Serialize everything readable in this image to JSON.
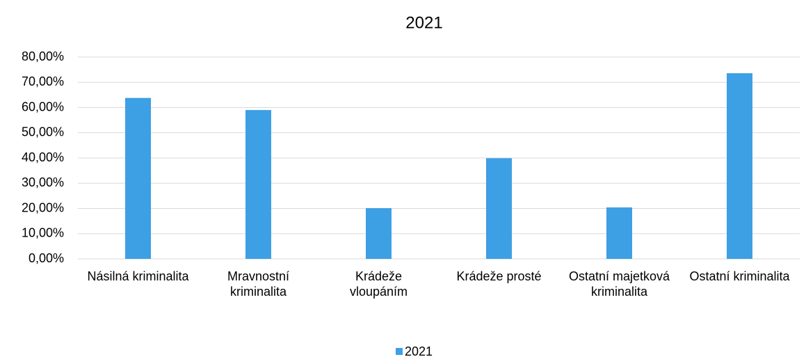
{
  "chart_data": {
    "type": "bar",
    "title": "2021",
    "categories": [
      "Násilná kriminalita",
      "Mravnostní kriminalita",
      "Krádeže vloupáním",
      "Krádeže prosté",
      "Ostatní majetková kriminalita",
      "Ostatní kriminalita"
    ],
    "series": [
      {
        "name": "2021",
        "color": "#3d9fe4",
        "values": [
          63.8,
          59.0,
          20.1,
          39.9,
          20.4,
          73.6
        ]
      }
    ],
    "ylim": [
      0,
      80
    ],
    "yticks": [
      {
        "value": 0,
        "label": "0,00%"
      },
      {
        "value": 10,
        "label": "10,00%"
      },
      {
        "value": 20,
        "label": "20,00%"
      },
      {
        "value": 30,
        "label": "30,00%"
      },
      {
        "value": 40,
        "label": "40,00%"
      },
      {
        "value": 50,
        "label": "50,00%"
      },
      {
        "value": 60,
        "label": "60,00%"
      },
      {
        "value": 70,
        "label": "70,00%"
      },
      {
        "value": 80,
        "label": "80,00%"
      }
    ],
    "grid": true,
    "legend": "bottom"
  }
}
